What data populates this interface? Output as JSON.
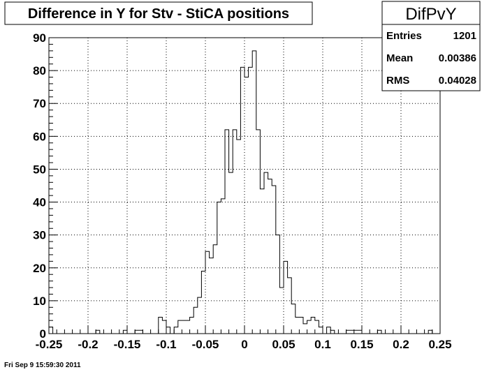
{
  "title": "Difference in Y for Stv - StiCA positions",
  "stats": {
    "name": "DifPvY",
    "entries_label": "Entries",
    "entries_value": "1201",
    "mean_label": "Mean",
    "mean_value": "0.00386",
    "rms_label": "RMS",
    "rms_value": "0.04028"
  },
  "footer": "Fri Sep  9 15:59:30 2011",
  "chart_data": {
    "type": "bar",
    "title": "Difference in Y for Stv - StiCA positions",
    "xlabel": "",
    "ylabel": "",
    "xlim": [
      -0.25,
      0.25
    ],
    "ylim": [
      0,
      90
    ],
    "grid": true,
    "bin_width": 0.005,
    "x_ticks": [
      -0.25,
      -0.2,
      -0.15,
      -0.1,
      -0.05,
      0,
      0.05,
      0.1,
      0.15,
      0.2,
      0.25
    ],
    "x_tick_labels": [
      "-0.25",
      "-0.2",
      "-0.15",
      "-0.1",
      "-0.05",
      "0",
      "0.05",
      "0.1",
      "0.15",
      "0.2",
      "0.25"
    ],
    "y_ticks": [
      0,
      10,
      20,
      30,
      40,
      50,
      60,
      70,
      80,
      90
    ],
    "y_tick_labels": [
      "0",
      "10",
      "20",
      "30",
      "40",
      "50",
      "60",
      "70",
      "80",
      "90"
    ],
    "bin_low_edges": [
      -0.25,
      -0.245,
      -0.24,
      -0.235,
      -0.23,
      -0.225,
      -0.22,
      -0.215,
      -0.21,
      -0.205,
      -0.2,
      -0.195,
      -0.19,
      -0.185,
      -0.18,
      -0.175,
      -0.17,
      -0.165,
      -0.16,
      -0.155,
      -0.15,
      -0.145,
      -0.14,
      -0.135,
      -0.13,
      -0.125,
      -0.12,
      -0.115,
      -0.11,
      -0.105,
      -0.1,
      -0.095,
      -0.09,
      -0.085,
      -0.08,
      -0.075,
      -0.07,
      -0.065,
      -0.06,
      -0.055,
      -0.05,
      -0.045,
      -0.04,
      -0.035,
      -0.03,
      -0.025,
      -0.02,
      -0.015,
      -0.01,
      -0.005,
      0,
      0.005,
      0.01,
      0.015,
      0.02,
      0.025,
      0.03,
      0.035,
      0.04,
      0.045,
      0.05,
      0.055,
      0.06,
      0.065,
      0.07,
      0.075,
      0.08,
      0.085,
      0.09,
      0.095,
      0.1,
      0.105,
      0.11,
      0.115,
      0.12,
      0.125,
      0.13,
      0.135,
      0.14,
      0.145,
      0.15,
      0.155,
      0.16,
      0.165,
      0.17,
      0.175,
      0.18,
      0.185,
      0.19,
      0.195,
      0.2,
      0.205,
      0.21,
      0.215,
      0.22,
      0.225,
      0.23,
      0.235,
      0.24,
      0.245
    ],
    "values": [
      2,
      0,
      0,
      0,
      0,
      0,
      0,
      0,
      0,
      0,
      0,
      0,
      1,
      0,
      0,
      0,
      0,
      0,
      0,
      1,
      0,
      0,
      1,
      1,
      0,
      0,
      0,
      0,
      5,
      4,
      2,
      0,
      2,
      4,
      4,
      4,
      5,
      8,
      11,
      19,
      25,
      23,
      27,
      40,
      41,
      62,
      49,
      62,
      59,
      81,
      78,
      81,
      86,
      62,
      44,
      49,
      47,
      45,
      30,
      14,
      22,
      17,
      9,
      5,
      5,
      3,
      4,
      5,
      4,
      2,
      0,
      2,
      1,
      0,
      0,
      0,
      1,
      1,
      1,
      1,
      0,
      0,
      0,
      0,
      1,
      0,
      0,
      0,
      0,
      0,
      0,
      0,
      0,
      0,
      0,
      0,
      0,
      1,
      0,
      0
    ]
  }
}
